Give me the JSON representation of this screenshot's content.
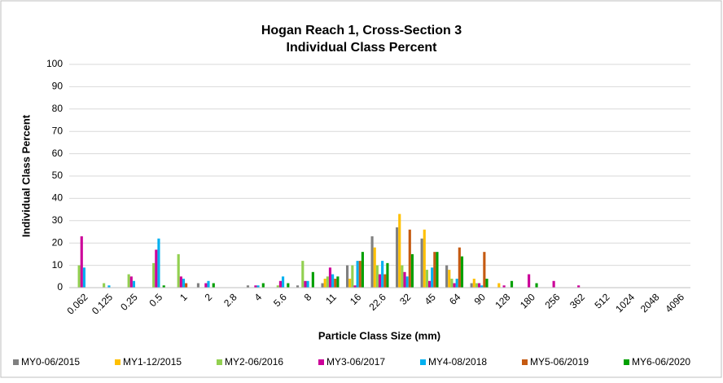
{
  "chart_data": {
    "type": "bar",
    "title": "Hogan Reach 1, Cross-Section 3",
    "subtitle": "Individual Class Percent",
    "x_label": "Particle Class Size (mm)",
    "y_label": "Individual Class Percent",
    "categories": [
      "0.062",
      "0.125",
      "0.25",
      "0.5",
      "1",
      "2",
      "2.8",
      "4",
      "5.6",
      "8",
      "11",
      "16",
      "22.6",
      "32",
      "45",
      "64",
      "90",
      "128",
      "180",
      "256",
      "362",
      "512",
      "1024",
      "2048",
      "4096"
    ],
    "series": [
      {
        "name": "MY0-06/2015",
        "color": "#808080",
        "values": [
          0,
          0,
          0,
          0,
          0,
          2,
          0,
          1,
          0,
          1,
          2,
          10,
          23,
          27,
          22,
          10,
          2,
          0,
          0,
          0,
          0,
          0,
          0,
          0,
          0
        ]
      },
      {
        "name": "MY1-12/2015",
        "color": "#ffc000",
        "values": [
          0,
          0,
          0,
          0,
          0,
          0,
          0,
          0,
          0,
          0,
          4,
          4,
          18,
          33,
          26,
          8,
          4,
          2,
          0,
          0,
          0,
          0,
          0,
          0,
          0
        ]
      },
      {
        "name": "MY2-06/2016",
        "color": "#92d050",
        "values": [
          10,
          2,
          6,
          11,
          15,
          0,
          0,
          0,
          1,
          12,
          5,
          10,
          10,
          10,
          8,
          4,
          2,
          0,
          0,
          0,
          0,
          0,
          0,
          0,
          0
        ]
      },
      {
        "name": "MY3-06/2017",
        "color": "#cc0099",
        "values": [
          23,
          0,
          5,
          17,
          5,
          2,
          0,
          1,
          3,
          3,
          9,
          1,
          6,
          7,
          3,
          2,
          2,
          1,
          6,
          3,
          1,
          0,
          0,
          0,
          0
        ]
      },
      {
        "name": "MY4-08/2018",
        "color": "#00b0f0",
        "values": [
          9,
          1,
          3,
          22,
          4,
          3,
          0,
          1,
          5,
          3,
          6,
          12,
          12,
          5,
          9,
          4,
          1,
          0,
          0,
          0,
          0,
          0,
          0,
          0,
          0
        ]
      },
      {
        "name": "MY5-06/2019",
        "color": "#c55a11",
        "values": [
          0,
          0,
          0,
          0,
          2,
          0,
          0,
          0,
          0,
          0,
          4,
          12,
          6,
          26,
          16,
          18,
          16,
          0,
          0,
          0,
          0,
          0,
          0,
          0,
          0
        ]
      },
      {
        "name": "MY6-06/2020",
        "color": "#00a000",
        "values": [
          0,
          0,
          0,
          1,
          0,
          2,
          0,
          2,
          2,
          7,
          5,
          16,
          11,
          15,
          16,
          14,
          4,
          3,
          2,
          0,
          0,
          0,
          0,
          0,
          0
        ]
      }
    ],
    "ylim": [
      0,
      100
    ],
    "yticks": [
      0,
      10,
      20,
      30,
      40,
      50,
      60,
      70,
      80,
      90,
      100
    ],
    "grid": true,
    "legend": "bottom"
  }
}
